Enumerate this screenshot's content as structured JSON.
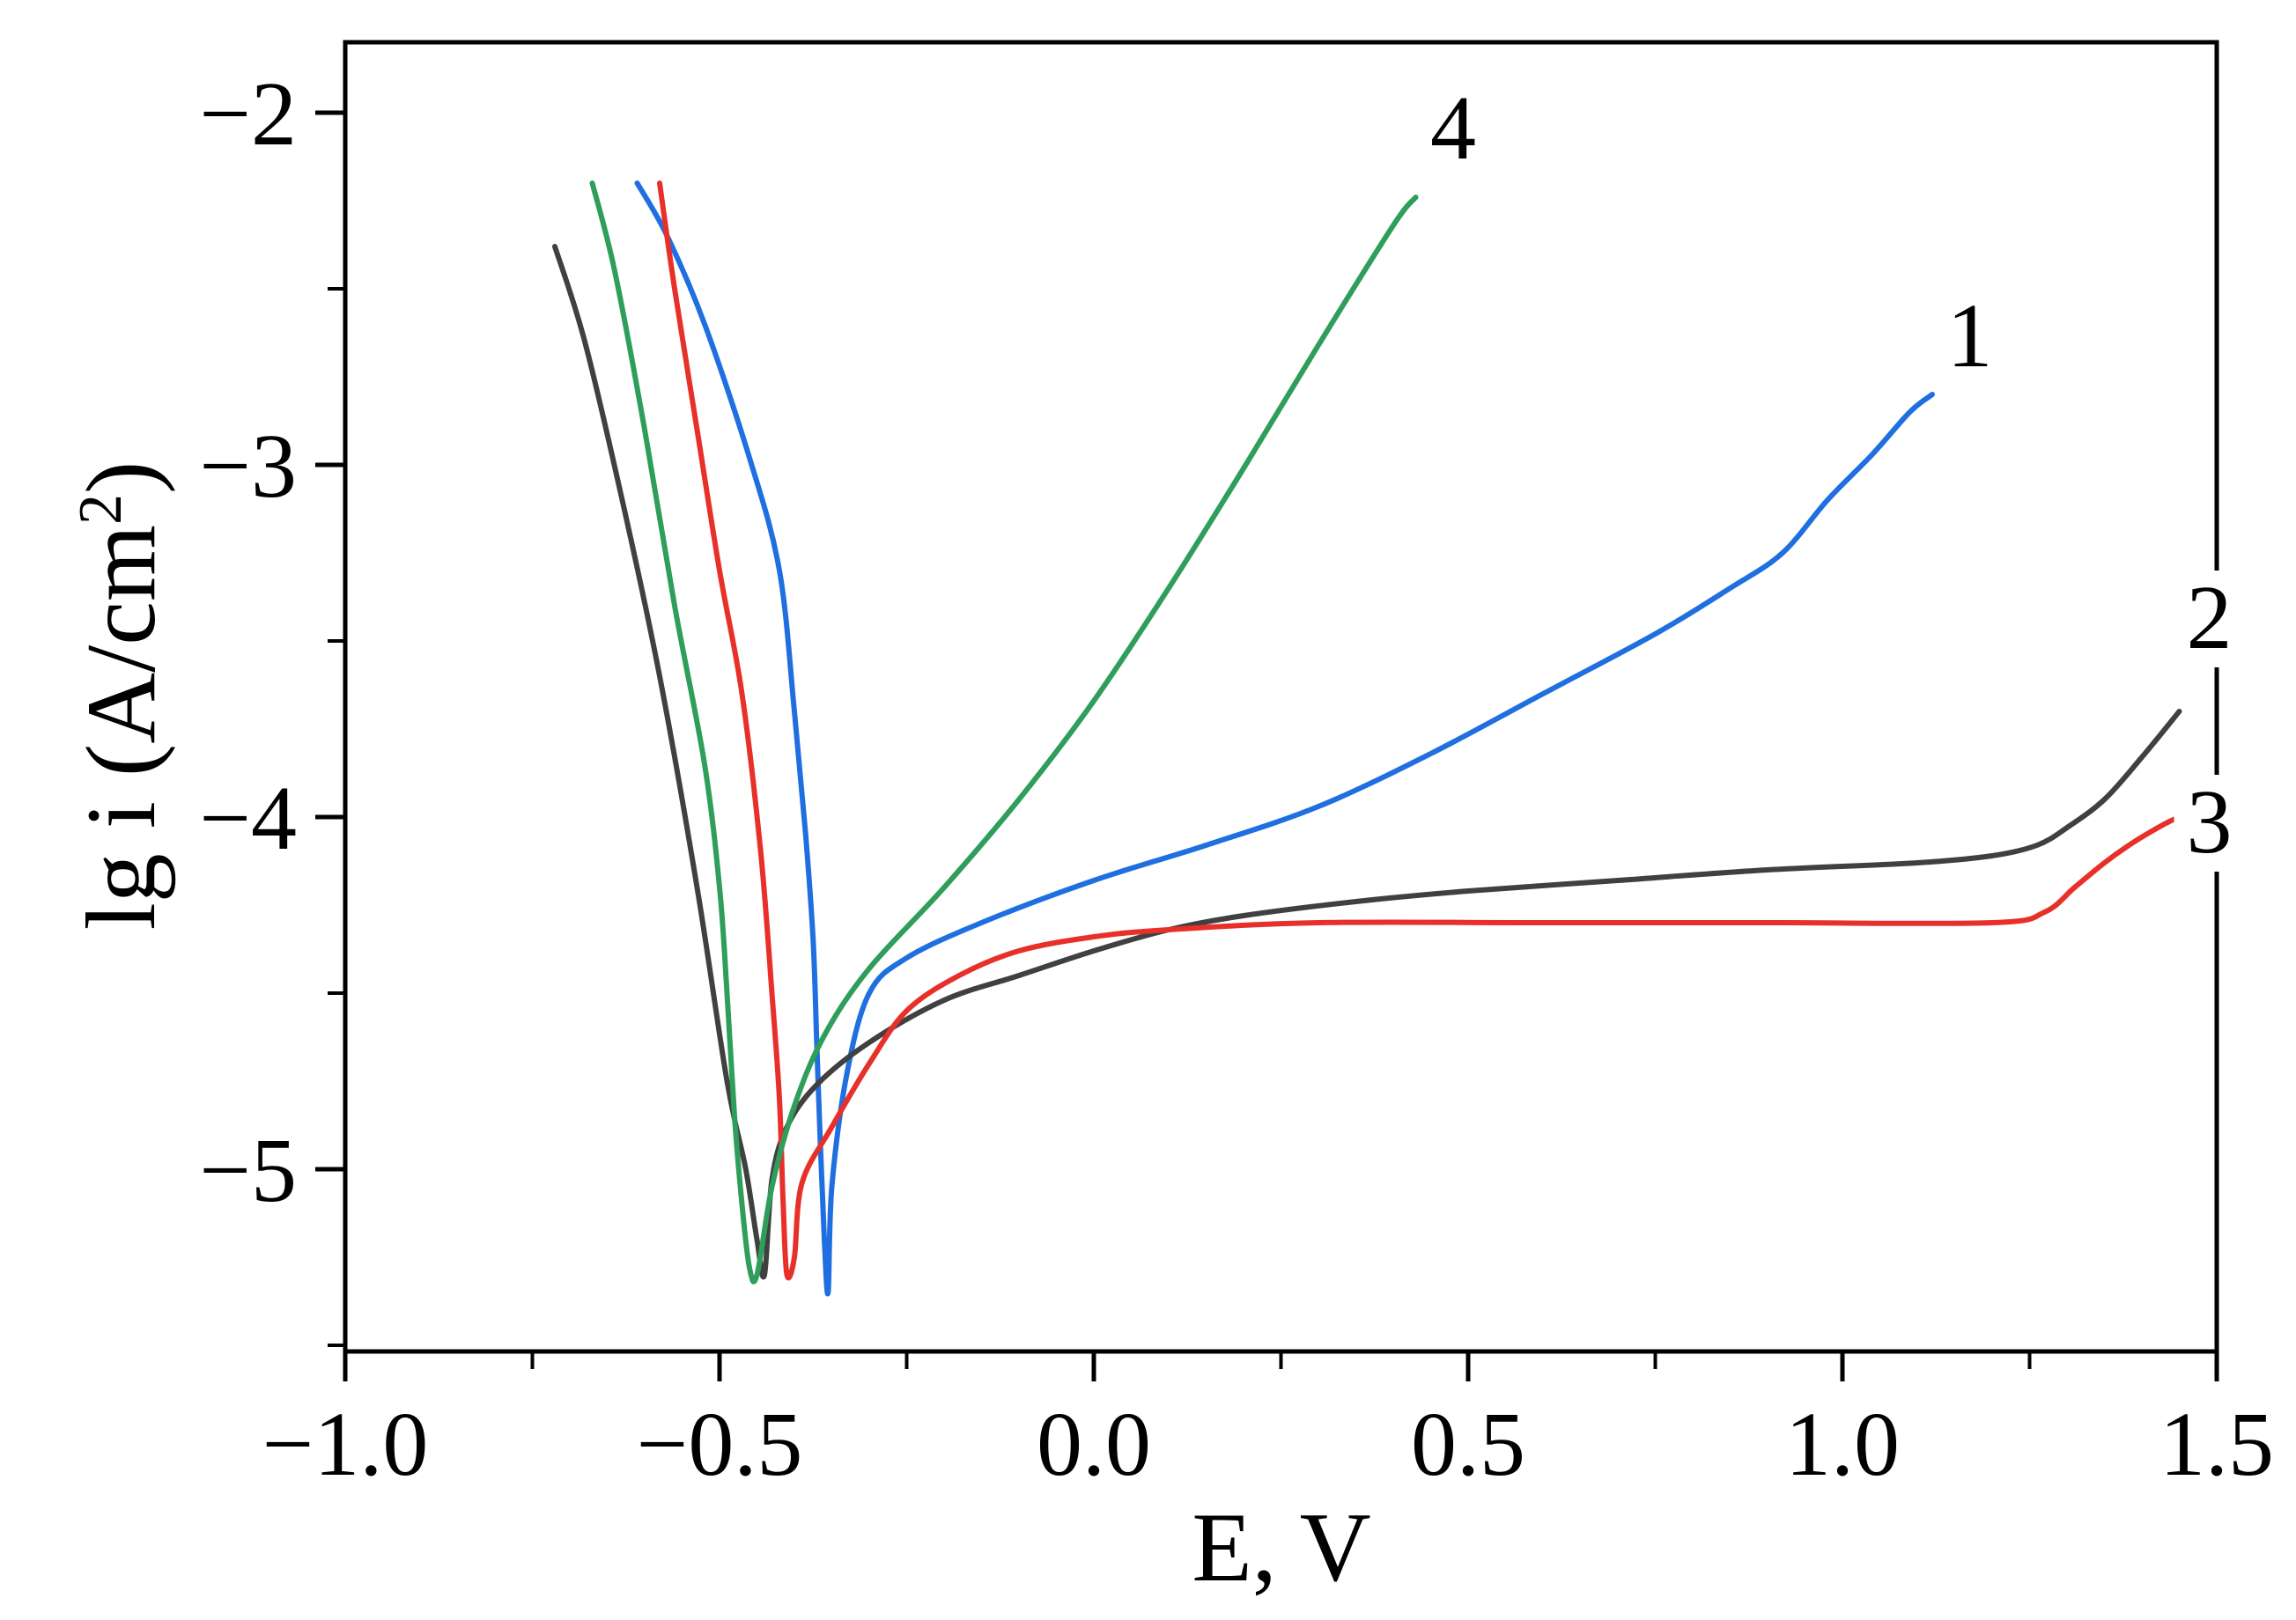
{
  "chart_data": {
    "type": "line",
    "title": "",
    "xlabel": "E, V",
    "ylabel_prefix": "lg i (A/cm",
    "ylabel_sup": "2",
    "ylabel_suffix": ")",
    "xlim": [
      -1.0,
      1.5
    ],
    "ylim": [
      -5.55,
      -1.8
    ],
    "xticks": [
      -1.0,
      -0.5,
      0.0,
      0.5,
      1.0,
      1.5
    ],
    "xtick_labels": [
      "−1.0",
      "−0.5",
      "0.0",
      "0.5",
      "1.0",
      "1.5"
    ],
    "yticks": [
      -2,
      -3,
      -4,
      -5
    ],
    "ytick_labels": [
      "−2",
      "−3",
      "−4",
      "−5"
    ],
    "grid": false,
    "series": [
      {
        "name": "1",
        "label": "1",
        "color": "#1f6fe0",
        "x": [
          -0.61,
          -0.57,
          -0.52,
          -0.46,
          -0.42,
          -0.4,
          -0.385,
          -0.375,
          -0.37,
          -0.365,
          -0.36,
          -0.355,
          -0.35,
          -0.33,
          -0.3,
          -0.25,
          -0.15,
          0.0,
          0.15,
          0.3,
          0.45,
          0.6,
          0.75,
          0.85,
          0.92,
          0.98,
          1.04,
          1.09,
          1.12
        ],
        "y": [
          -2.2,
          -2.35,
          -2.6,
          -2.98,
          -3.3,
          -3.7,
          -4.05,
          -4.35,
          -4.65,
          -4.95,
          -5.2,
          -5.35,
          -5.05,
          -4.73,
          -4.5,
          -4.4,
          -4.3,
          -4.18,
          -4.08,
          -3.97,
          -3.82,
          -3.65,
          -3.48,
          -3.35,
          -3.25,
          -3.1,
          -2.97,
          -2.85,
          -2.8
        ]
      },
      {
        "name": "2",
        "label": "2",
        "color": "#404040",
        "x": [
          -0.72,
          -0.68,
          -0.63,
          -0.58,
          -0.53,
          -0.49,
          -0.465,
          -0.45,
          -0.44,
          -0.43,
          -0.41,
          -0.37,
          -0.3,
          -0.2,
          -0.1,
          0.0,
          0.1,
          0.2,
          0.35,
          0.5,
          0.7,
          0.9,
          1.1,
          1.2,
          1.26,
          1.3,
          1.35,
          1.4,
          1.45
        ],
        "y": [
          -2.38,
          -2.65,
          -3.1,
          -3.6,
          -4.2,
          -4.75,
          -5.0,
          -5.2,
          -5.3,
          -5.03,
          -4.88,
          -4.76,
          -4.64,
          -4.52,
          -4.45,
          -4.38,
          -4.32,
          -4.28,
          -4.24,
          -4.21,
          -4.18,
          -4.15,
          -4.13,
          -4.11,
          -4.08,
          -4.03,
          -3.95,
          -3.83,
          -3.7
        ]
      },
      {
        "name": "3",
        "label": "3",
        "color": "#e8302a",
        "x": [
          -0.58,
          -0.56,
          -0.53,
          -0.5,
          -0.47,
          -0.445,
          -0.43,
          -0.42,
          -0.415,
          -0.41,
          -0.4,
          -0.39,
          -0.35,
          -0.3,
          -0.25,
          -0.18,
          -0.1,
          0.0,
          0.1,
          0.3,
          0.6,
          0.9,
          1.2,
          1.27,
          1.31,
          1.35,
          1.39,
          1.43,
          1.45
        ],
        "y": [
          -2.2,
          -2.5,
          -2.9,
          -3.3,
          -3.65,
          -4.1,
          -4.5,
          -4.8,
          -5.1,
          -5.3,
          -5.25,
          -5.04,
          -4.88,
          -4.7,
          -4.55,
          -4.45,
          -4.38,
          -4.34,
          -4.32,
          -4.3,
          -4.3,
          -4.3,
          -4.3,
          -4.27,
          -4.2,
          -4.13,
          -4.07,
          -4.02,
          -4.0
        ]
      },
      {
        "name": "4",
        "label": "4",
        "color": "#2e9e5a",
        "x": [
          -0.67,
          -0.64,
          -0.6,
          -0.56,
          -0.52,
          -0.5,
          -0.49,
          -0.48,
          -0.47,
          -0.46,
          -0.45,
          -0.43,
          -0.4,
          -0.36,
          -0.3,
          -0.2,
          -0.1,
          0.0,
          0.1,
          0.2,
          0.3,
          0.4,
          0.43
        ],
        "y": [
          -2.2,
          -2.45,
          -2.9,
          -3.4,
          -3.85,
          -4.2,
          -4.5,
          -4.85,
          -5.1,
          -5.28,
          -5.3,
          -5.05,
          -4.82,
          -4.62,
          -4.43,
          -4.2,
          -3.95,
          -3.67,
          -3.35,
          -3.01,
          -2.66,
          -2.32,
          -2.24
        ]
      }
    ],
    "curve_labels": [
      {
        "series": "4",
        "text": "4",
        "x": 0.48,
        "y": -2.13
      },
      {
        "series": "1",
        "text": "1",
        "x": 1.17,
        "y": -2.72
      },
      {
        "series": "2",
        "text": "2",
        "x": 1.49,
        "y": -3.52
      },
      {
        "series": "3",
        "text": "3",
        "x": 1.49,
        "y": -4.1
      }
    ]
  }
}
